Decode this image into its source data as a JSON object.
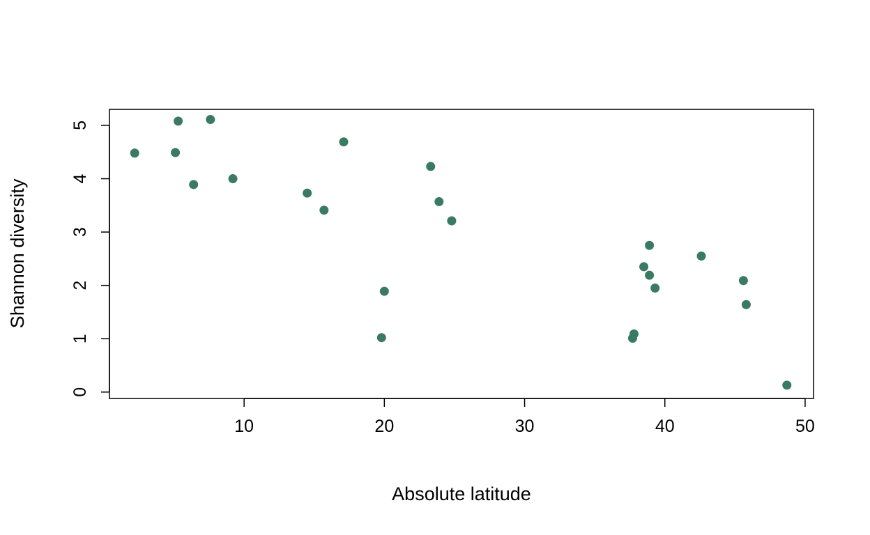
{
  "chart_data": {
    "type": "scatter",
    "title": "",
    "xlabel": "Absolute latitude",
    "ylabel": "Shannon diversity",
    "xlim": [
      0.4,
      50.6
    ],
    "ylim": [
      -0.12,
      5.3
    ],
    "xticks": [
      10,
      20,
      30,
      40,
      50
    ],
    "yticks": [
      0,
      1,
      2,
      3,
      4,
      5
    ],
    "grid": false,
    "legend": "none",
    "point_color": "#3a7a63",
    "points": [
      {
        "x": 2.2,
        "y": 4.48
      },
      {
        "x": 5.1,
        "y": 4.49
      },
      {
        "x": 5.3,
        "y": 5.08
      },
      {
        "x": 6.4,
        "y": 3.89
      },
      {
        "x": 7.6,
        "y": 5.11
      },
      {
        "x": 9.2,
        "y": 4.0
      },
      {
        "x": 14.5,
        "y": 3.73
      },
      {
        "x": 15.7,
        "y": 3.41
      },
      {
        "x": 17.1,
        "y": 4.69
      },
      {
        "x": 19.8,
        "y": 1.02
      },
      {
        "x": 20.0,
        "y": 1.89
      },
      {
        "x": 23.3,
        "y": 4.23
      },
      {
        "x": 23.9,
        "y": 3.57
      },
      {
        "x": 24.8,
        "y": 3.21
      },
      {
        "x": 37.7,
        "y": 1.01
      },
      {
        "x": 37.8,
        "y": 1.09
      },
      {
        "x": 38.5,
        "y": 2.35
      },
      {
        "x": 38.9,
        "y": 2.75
      },
      {
        "x": 38.9,
        "y": 2.19
      },
      {
        "x": 39.3,
        "y": 1.95
      },
      {
        "x": 42.6,
        "y": 2.55
      },
      {
        "x": 45.6,
        "y": 2.09
      },
      {
        "x": 45.8,
        "y": 1.64
      },
      {
        "x": 48.7,
        "y": 0.13
      }
    ]
  }
}
